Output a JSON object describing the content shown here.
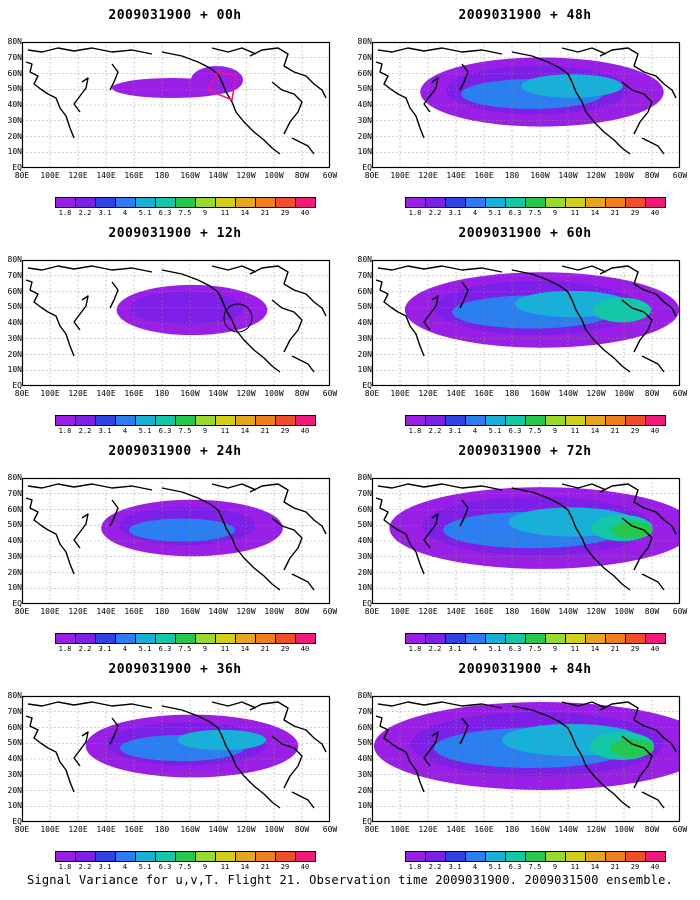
{
  "footer": "Signal Variance for u,v,T. Flight 21. Observation time 2009031900. 2009031500 ensemble.",
  "lat_labels": [
    "80N",
    "70N",
    "60N",
    "50N",
    "40N",
    "30N",
    "20N",
    "10N",
    "EQ"
  ],
  "lon_labels": [
    "80E",
    "100E",
    "120E",
    "140E",
    "160E",
    "180",
    "160W",
    "140W",
    "120W",
    "100W",
    "80W",
    "60W"
  ],
  "colorbar": {
    "labels": [
      "1.8",
      "2.2",
      "3.1",
      "4",
      "5.1",
      "6.3",
      "7.5",
      "9",
      "11",
      "14",
      "21",
      "29",
      "40"
    ],
    "colors": [
      "#9a1fe6",
      "#7d1fe6",
      "#3241e6",
      "#2b7ef0",
      "#18b0d8",
      "#12c8a8",
      "#25c84d",
      "#9ad82c",
      "#d2cf1c",
      "#e6a51f",
      "#ef7f1c",
      "#f04d2a",
      "#f01a7a"
    ]
  },
  "panels": [
    {
      "title": "2009031900 + 00h"
    },
    {
      "title": "2009031900 + 12h"
    },
    {
      "title": "2009031900 + 24h"
    },
    {
      "title": "2009031900 + 36h"
    },
    {
      "title": "2009031900 + 48h"
    },
    {
      "title": "2009031900 + 60h"
    },
    {
      "title": "2009031900 + 72h"
    },
    {
      "title": "2009031900 + 84h"
    }
  ]
}
